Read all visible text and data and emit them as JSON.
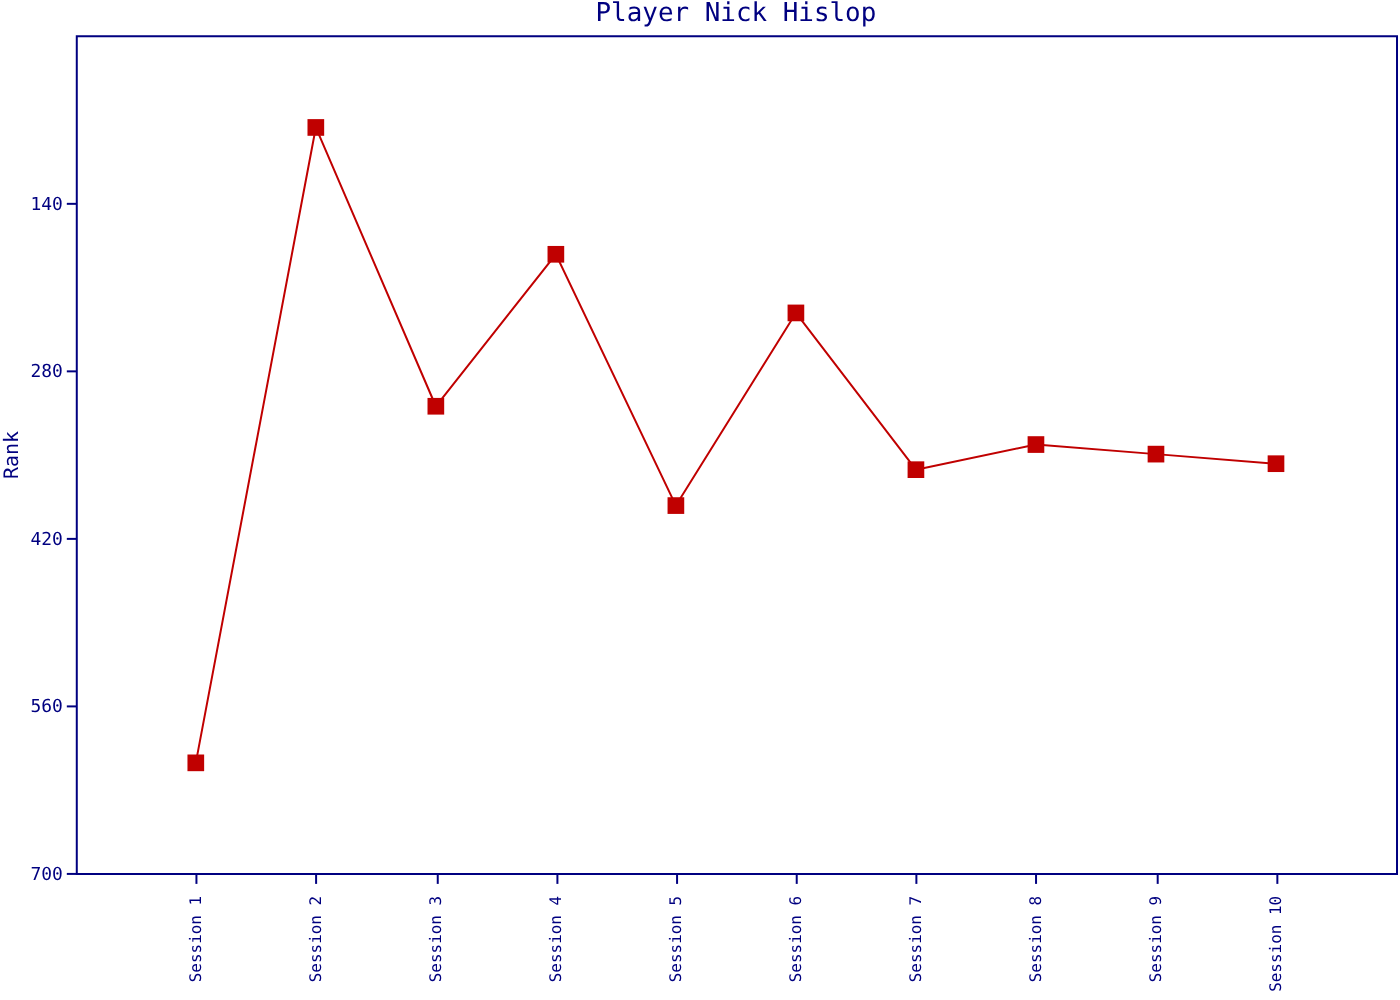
{
  "chart_data": {
    "type": "line",
    "title": "Player Nick Hislop",
    "ylabel": "Rank",
    "categories": [
      "Session 1",
      "Session 2",
      "Session 3",
      "Session 4",
      "Session 5",
      "Session 6",
      "Session 7",
      "Session 8",
      "Session 9",
      "Session 10"
    ],
    "series": [
      {
        "color": "#c00000",
        "values": [
          608,
          77,
          310,
          183,
          393,
          232,
          363,
          342,
          350,
          358
        ]
      }
    ],
    "ylim": [
      700,
      0
    ],
    "yticks": [
      140,
      280,
      420,
      560,
      700
    ],
    "grid": false,
    "legend": false,
    "marker": "square",
    "line_style": "solid"
  }
}
